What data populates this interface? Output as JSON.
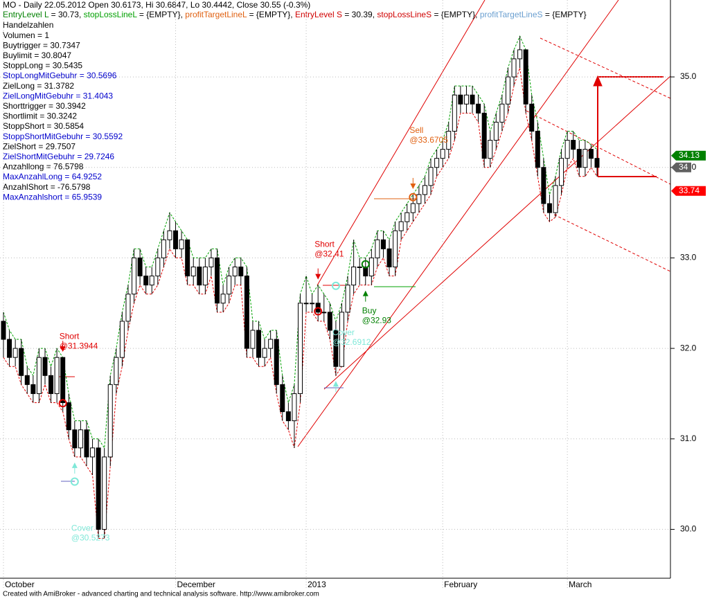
{
  "header": {
    "title": "MO - Daily 22.05.2012 Open 30.6173, Hi 30.6847, Lo 30.4442, Close 30.55 (-0.3%)",
    "levels": [
      {
        "text": "EntryLevel L",
        "color": "#008000"
      },
      {
        "text": " = 30.73, ",
        "color": "#000000"
      },
      {
        "text": "stopLossLineL",
        "color": "#00a000"
      },
      {
        "text": " = {EMPTY}, ",
        "color": "#000000"
      },
      {
        "text": "profitTargetLineL",
        "color": "#e06010"
      },
      {
        "text": " = {EMPTY}, ",
        "color": "#000000"
      },
      {
        "text": "EntryLevel S",
        "color": "#d00000"
      },
      {
        "text": " = 30.39, ",
        "color": "#000000"
      },
      {
        "text": "stopLossLineS",
        "color": "#d00000"
      },
      {
        "text": " = {EMPTY}, ",
        "color": "#000000"
      },
      {
        "text": "profitTargetLineS",
        "color": "#6a9fd0"
      },
      {
        "text": " = {EMPTY}",
        "color": "#000000"
      }
    ],
    "params": [
      {
        "text": "Handelzahlen",
        "color": "#000000"
      },
      {
        "text": "Volumen = 1",
        "color": "#000000"
      },
      {
        "text": "Buytrigger = 30.7347",
        "color": "#000000"
      },
      {
        "text": "Buylimit = 30.8047",
        "color": "#000000"
      },
      {
        "text": "StoppLong = 30.5435",
        "color": "#000000"
      },
      {
        "text": "StopLongMitGebuhr = 30.5696",
        "color": "#0000cc"
      },
      {
        "text": "ZielLong = 31.3782",
        "color": "#000000"
      },
      {
        "text": "ZielLongMitGebuhr = 31.4043",
        "color": "#0000cc"
      },
      {
        "text": "Shorttrigger = 30.3942",
        "color": "#000000"
      },
      {
        "text": "Shortlimit = 30.3242",
        "color": "#000000"
      },
      {
        "text": "StoppShort = 30.5854",
        "color": "#000000"
      },
      {
        "text": "StoppShortMitGebuhr = 30.5592",
        "color": "#0000cc"
      },
      {
        "text": "ZielShort = 29.7507",
        "color": "#000000"
      },
      {
        "text": "ZielShortMitGebuhr = 29.7246",
        "color": "#0000cc"
      },
      {
        "text": "Anzahllong = 76.5798",
        "color": "#000000"
      },
      {
        "text": "MaxAnzahlLong = 64.9252",
        "color": "#0000cc"
      },
      {
        "text": "AnzahlShort = -76.5798",
        "color": "#000000"
      },
      {
        "text": "MaxAnzahlshort = 65.9539",
        "color": "#0000cc"
      }
    ]
  },
  "chart_data": {
    "type": "candlestick",
    "ylim": [
      29.46,
      35.85
    ],
    "yticks": [
      {
        "value": 30,
        "label": "30.0"
      },
      {
        "value": 31,
        "label": "31.0"
      },
      {
        "value": 32,
        "label": "32.0"
      },
      {
        "value": 33,
        "label": "33.0"
      },
      {
        "value": 34,
        "label": "34.0"
      },
      {
        "value": 35,
        "label": "35.0"
      }
    ],
    "xlabels": [
      {
        "index": 0,
        "label": "October"
      },
      {
        "index": 29,
        "label": "December"
      },
      {
        "index": 51,
        "label": "2013"
      },
      {
        "index": 74,
        "label": "February"
      },
      {
        "index": 95,
        "label": "March"
      }
    ],
    "candles": [
      [
        32.3,
        32.4,
        31.9,
        32.1
      ],
      [
        32.1,
        32.2,
        31.8,
        31.9
      ],
      [
        31.9,
        32.1,
        31.8,
        32.0
      ],
      [
        32.0,
        32.1,
        31.6,
        31.7
      ],
      [
        31.7,
        31.8,
        31.5,
        31.6
      ],
      [
        31.6,
        31.7,
        31.4,
        31.5
      ],
      [
        31.5,
        32.0,
        31.4,
        31.9
      ],
      [
        31.9,
        32.0,
        31.6,
        31.7
      ],
      [
        31.7,
        31.8,
        31.4,
        31.5
      ],
      [
        31.5,
        32.0,
        31.4,
        31.9
      ],
      [
        31.9,
        31.9,
        31.3,
        31.4
      ],
      [
        31.4,
        31.5,
        31.0,
        31.1
      ],
      [
        31.1,
        31.2,
        30.8,
        30.9
      ],
      [
        30.9,
        31.2,
        30.8,
        31.1
      ],
      [
        31.1,
        31.2,
        30.7,
        30.8
      ],
      [
        30.8,
        31.0,
        30.6,
        30.9
      ],
      [
        30.9,
        31.0,
        29.9,
        30.0
      ],
      [
        30.0,
        30.9,
        29.9,
        30.8
      ],
      [
        30.8,
        31.7,
        30.7,
        31.6
      ],
      [
        31.6,
        32.0,
        31.5,
        31.9
      ],
      [
        31.9,
        32.4,
        31.8,
        32.3
      ],
      [
        32.3,
        32.7,
        32.2,
        32.6
      ],
      [
        32.6,
        33.1,
        32.5,
        33.0
      ],
      [
        33.0,
        33.1,
        32.7,
        32.8
      ],
      [
        32.8,
        32.9,
        32.6,
        32.7
      ],
      [
        32.7,
        32.9,
        32.6,
        32.8
      ],
      [
        32.8,
        33.1,
        32.7,
        33.0
      ],
      [
        33.0,
        33.3,
        32.9,
        33.2
      ],
      [
        33.2,
        33.5,
        33.1,
        33.3
      ],
      [
        33.3,
        33.4,
        33.0,
        33.1
      ],
      [
        33.1,
        33.3,
        33.0,
        33.2
      ],
      [
        33.2,
        33.2,
        32.7,
        32.8
      ],
      [
        32.8,
        33.0,
        32.7,
        32.9
      ],
      [
        32.9,
        33.0,
        32.6,
        32.7
      ],
      [
        32.7,
        33.0,
        32.6,
        32.9
      ],
      [
        32.9,
        33.1,
        32.8,
        33.0
      ],
      [
        33.0,
        33.1,
        32.4,
        32.5
      ],
      [
        32.5,
        32.7,
        32.4,
        32.6
      ],
      [
        32.6,
        32.9,
        32.5,
        32.8
      ],
      [
        32.8,
        33.0,
        32.7,
        32.9
      ],
      [
        32.9,
        33.0,
        32.7,
        32.8
      ],
      [
        32.8,
        32.9,
        31.9,
        32.0
      ],
      [
        32.0,
        32.3,
        31.9,
        32.2
      ],
      [
        32.2,
        32.3,
        31.8,
        31.9
      ],
      [
        31.9,
        32.1,
        31.8,
        32.0
      ],
      [
        32.0,
        32.2,
        31.9,
        32.1
      ],
      [
        32.1,
        32.2,
        31.5,
        31.6
      ],
      [
        31.6,
        31.7,
        31.2,
        31.3
      ],
      [
        31.3,
        31.4,
        31.1,
        31.2
      ],
      [
        31.2,
        31.6,
        30.9,
        31.5
      ],
      [
        31.5,
        32.6,
        31.4,
        32.5
      ],
      [
        32.5,
        32.8,
        32.4,
        32.5
      ],
      [
        32.5,
        32.6,
        32.4,
        32.5
      ],
      [
        32.5,
        32.7,
        32.3,
        32.4
      ],
      [
        32.4,
        32.6,
        32.3,
        32.4
      ],
      [
        32.4,
        32.5,
        32.1,
        32.2
      ],
      [
        32.2,
        32.3,
        31.7,
        31.8
      ],
      [
        31.8,
        32.5,
        31.8,
        32.4
      ],
      [
        32.4,
        32.8,
        32.3,
        32.7
      ],
      [
        32.7,
        33.2,
        32.6,
        32.9
      ],
      [
        32.9,
        33.0,
        32.7,
        32.9
      ],
      [
        32.9,
        33.0,
        32.7,
        32.8
      ],
      [
        32.8,
        33.1,
        32.7,
        33.0
      ],
      [
        33.0,
        33.3,
        32.9,
        33.2
      ],
      [
        33.2,
        33.3,
        33.0,
        33.1
      ],
      [
        33.1,
        33.2,
        32.8,
        32.9
      ],
      [
        32.9,
        33.4,
        32.8,
        33.3
      ],
      [
        33.3,
        33.5,
        33.2,
        33.4
      ],
      [
        33.4,
        33.6,
        33.3,
        33.5
      ],
      [
        33.5,
        33.7,
        33.4,
        33.6
      ],
      [
        33.6,
        33.8,
        33.5,
        33.7
      ],
      [
        33.7,
        33.9,
        33.6,
        33.8
      ],
      [
        33.8,
        34.1,
        33.7,
        34.0
      ],
      [
        34.0,
        34.2,
        33.9,
        34.1
      ],
      [
        34.1,
        34.3,
        34.0,
        34.2
      ],
      [
        34.2,
        34.5,
        34.1,
        34.4
      ],
      [
        34.4,
        34.9,
        34.3,
        34.8
      ],
      [
        34.8,
        34.9,
        34.6,
        34.7
      ],
      [
        34.7,
        34.9,
        34.6,
        34.8
      ],
      [
        34.8,
        34.9,
        34.6,
        34.7
      ],
      [
        34.7,
        34.8,
        34.5,
        34.6
      ],
      [
        34.6,
        34.7,
        34.0,
        34.1
      ],
      [
        34.1,
        34.4,
        34.0,
        34.3
      ],
      [
        34.3,
        34.6,
        34.2,
        34.5
      ],
      [
        34.5,
        34.8,
        34.4,
        34.7
      ],
      [
        34.7,
        35.1,
        34.6,
        35.0
      ],
      [
        35.0,
        35.3,
        34.9,
        35.2
      ],
      [
        35.2,
        35.45,
        35.1,
        35.3
      ],
      [
        35.3,
        35.3,
        34.6,
        34.7
      ],
      [
        34.7,
        34.8,
        34.3,
        34.4
      ],
      [
        34.4,
        34.5,
        33.9,
        34.0
      ],
      [
        34.0,
        34.1,
        33.5,
        33.6
      ],
      [
        33.6,
        33.7,
        33.4,
        33.5
      ],
      [
        33.5,
        33.9,
        33.45,
        33.8
      ],
      [
        33.8,
        34.2,
        33.7,
        34.1
      ],
      [
        34.1,
        34.4,
        34.0,
        34.3
      ],
      [
        34.3,
        34.4,
        34.1,
        34.2
      ],
      [
        34.2,
        34.3,
        33.9,
        34.0
      ],
      [
        34.0,
        34.3,
        33.9,
        34.2
      ],
      [
        34.2,
        34.25,
        34.0,
        34.1
      ],
      [
        34.1,
        34.2,
        33.9,
        34.0
      ]
    ],
    "price_labels": [
      {
        "value": 34.13,
        "label": "34.13",
        "color": "#008000"
      },
      {
        "value": 34,
        "label": "34",
        "color": "#606060"
      },
      {
        "value": 33.74,
        "label": "33.74",
        "color": "#ff0000"
      }
    ],
    "signals": [
      {
        "label": "Short",
        "index": 10,
        "price": 31.3944,
        "price_label": "@31.3944",
        "color": "#e00000",
        "side": "above"
      },
      {
        "label": "Cover",
        "index": 12,
        "price": 30.5273,
        "price_label": "@30.5273",
        "color": "#7fe8d8",
        "side": "below"
      },
      {
        "label": "Short",
        "index": 53,
        "price": 32.41,
        "price_label": "@32.41",
        "color": "#e00000",
        "side": "above"
      },
      {
        "label": "Cover",
        "index": 56,
        "price": 32.6912,
        "price_label": "@32.6912",
        "color": "#7fe8d8",
        "side": "below"
      },
      {
        "label": "Buy",
        "index": 61,
        "price": 32.93,
        "price_label": "@32.93",
        "color": "#008000",
        "side": "below"
      },
      {
        "label": "Sell",
        "index": 69,
        "price": 33.6705,
        "price_label": "@33.6705",
        "color": "#e06010",
        "side": "above"
      }
    ]
  },
  "footer": "Created with AmiBroker - advanced charting and technical analysis software. http://www.amibroker.com"
}
